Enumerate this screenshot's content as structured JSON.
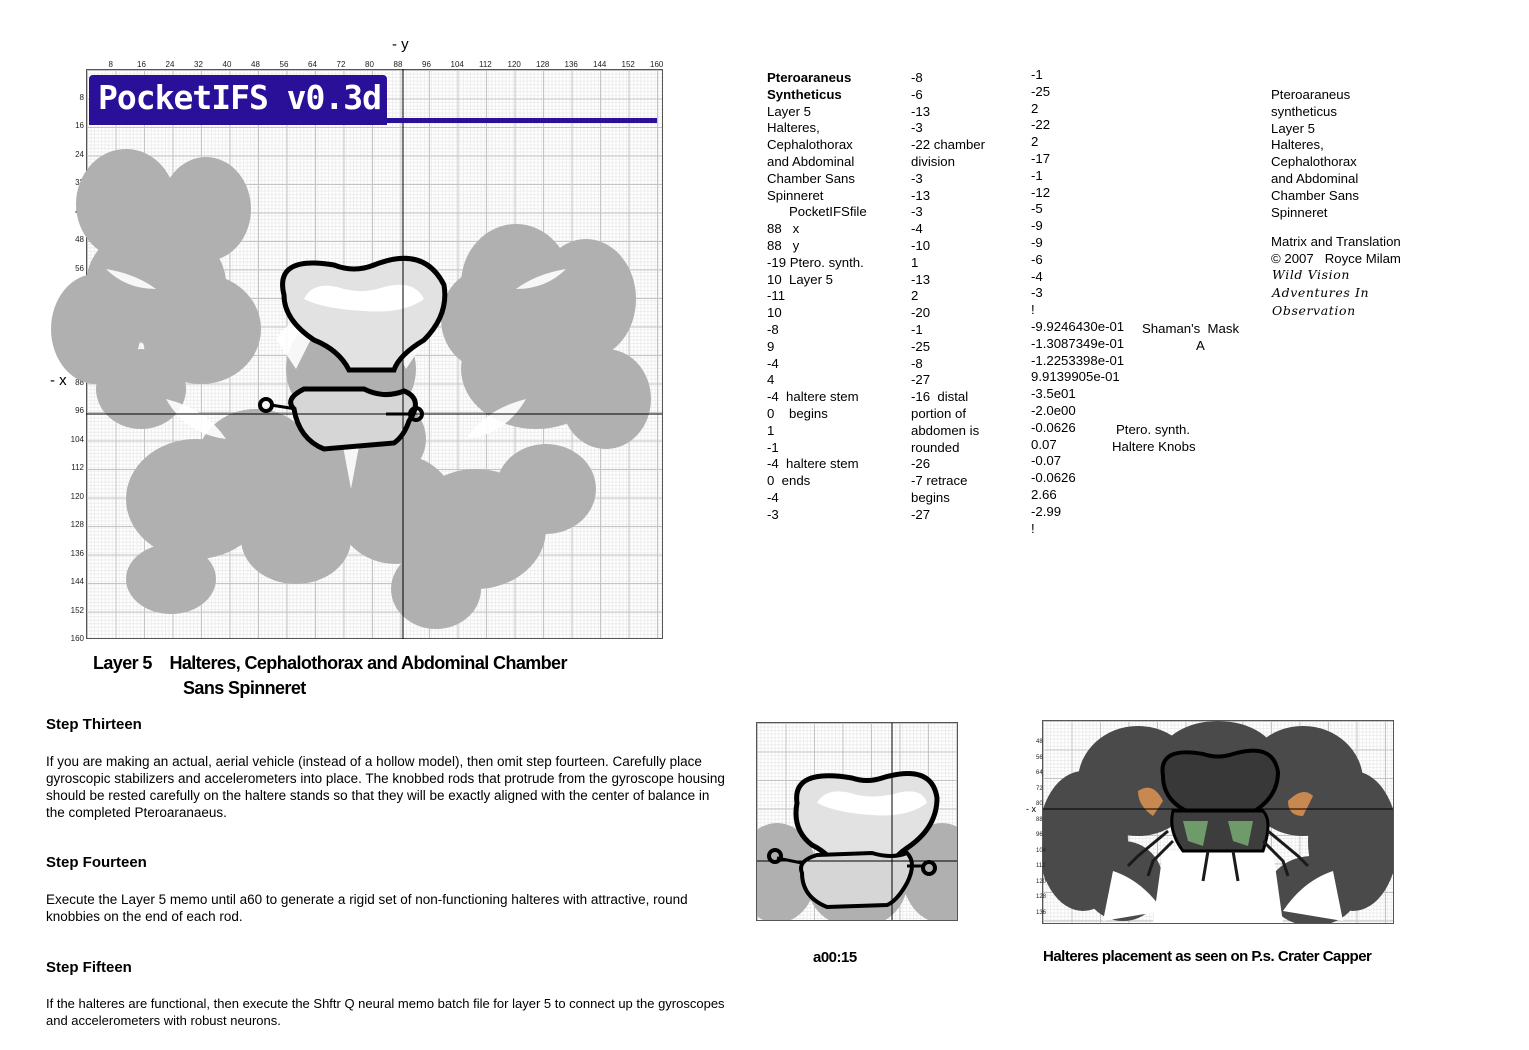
{
  "plot": {
    "banner": "PocketIFS v0.3d",
    "x_ticks": [
      "8",
      "16",
      "24",
      "32",
      "40",
      "48",
      "56",
      "64",
      "72",
      "80",
      "88",
      "96",
      "104",
      "112",
      "120",
      "128",
      "136",
      "144",
      "152",
      "160"
    ],
    "y_ticks": [
      "8",
      "16",
      "24",
      "32",
      "40",
      "48",
      "56",
      "64",
      "72",
      "80",
      "88",
      "96",
      "104",
      "112",
      "120",
      "128",
      "136",
      "144",
      "152",
      "160"
    ],
    "axis_minus_y": "- y",
    "axis_minus_x": "- x"
  },
  "caption": {
    "line1": "Layer 5    Halteres, Cephalothorax and Abdominal Chamber",
    "line2": "Sans Spinneret"
  },
  "steps": [
    {
      "title": "Step Thirteen",
      "text": "If you are making an actual, aerial vehicle (instead of a hollow model), then omit step fourteen. Carefully place gyroscopic stabilizers and accelerometers into place.  The knobbed rods that protrude from the gyroscope housing should be rested carefully on the haltere stands so that they will be exactly aligned with the center of balance in the completed Pteroaranaeus."
    },
    {
      "title": "Step Fourteen",
      "text": "Execute the Layer 5 memo until a60 to generate a rigid set of non-functioning halteres with attractive, round knobbies on the end of each rod."
    },
    {
      "title": "Step Fifteen",
      "text": "If the halteres are functional, then execute the Shftr Q neural memo batch file for layer 5 to connect up the gyroscopes and accelerometers with robust neurons."
    }
  ],
  "col1": [
    "Pteroaraneus",
    "Syntheticus",
    "Layer 5",
    "Halteres,",
    "Cephalothorax",
    "and Abdominal",
    "Chamber Sans",
    "Spinneret",
    "      PocketIFSfile",
    "88   x",
    "88   y",
    "-19 Ptero. synth.",
    "10  Layer 5",
    "-11",
    "10",
    "-8",
    "9",
    "-4",
    "4",
    "-4  haltere stem",
    "0    begins",
    "1",
    "-1",
    "-4  haltere stem",
    "0  ends",
    "-4",
    "-3"
  ],
  "col2": [
    "-8",
    "-6",
    "-13",
    "-3",
    "-22 chamber",
    "division",
    "-3",
    "-13",
    "-3",
    "-4",
    "-10",
    "1",
    "-13",
    "2",
    "-20",
    "-1",
    "-25",
    "-8",
    "-27",
    "-16  distal",
    "portion of",
    "abdomen is",
    "rounded",
    "-26",
    "-7 retrace",
    "begins",
    "-27"
  ],
  "col3": [
    "-1",
    "-25",
    "2",
    "-22",
    "2",
    "-17",
    "-1",
    "-12",
    "-5",
    "-9",
    "-9",
    "-6",
    "-4",
    "-3",
    "!",
    "-9.9246430e-01",
    "-1.3087349e-01",
    "-1.2253398e-01",
    "9.9139905e-01",
    "-3.5e01",
    "-2.0e00",
    "-0.0626",
    "0.07",
    "-0.07",
    "-0.0626",
    "2.66",
    "-2.99",
    "!"
  ],
  "col3_notes": {
    "mask": "Shaman's  Mask",
    "mask_letter": "A",
    "knobs1": "Ptero. synth.",
    "knobs2": "Haltere Knobs"
  },
  "col4": [
    "Pteroaraneus",
    "syntheticus",
    "Layer 5",
    "Halteres,",
    "Cephalothorax",
    "and Abdominal",
    "Chamber Sans",
    "Spinneret"
  ],
  "credits": {
    "line1": "Matrix and Translation",
    "line2": "© 2007   Royce Milam",
    "logo1": "Wild Vision",
    "logo2": "Adventures In",
    "logo3": "Observation"
  },
  "thumb1": {
    "caption": "a00:15"
  },
  "thumb2": {
    "caption": "Halteres placement as seen on P.s. Crater Capper",
    "y_ticks": [
      "48",
      "56",
      "64",
      "72",
      "80",
      "88",
      "96",
      "104",
      "112",
      "120",
      "128",
      "136"
    ],
    "x_label": "- x"
  },
  "colors": {
    "banner_bg": "#2a0f99",
    "banner_text": "#ffffff",
    "fractal": "#b0b0b0",
    "fractal_dark": "#4a4a4a",
    "outline": "#000000",
    "knob_orange": "#c9884f",
    "green": "#6f9a6a"
  }
}
